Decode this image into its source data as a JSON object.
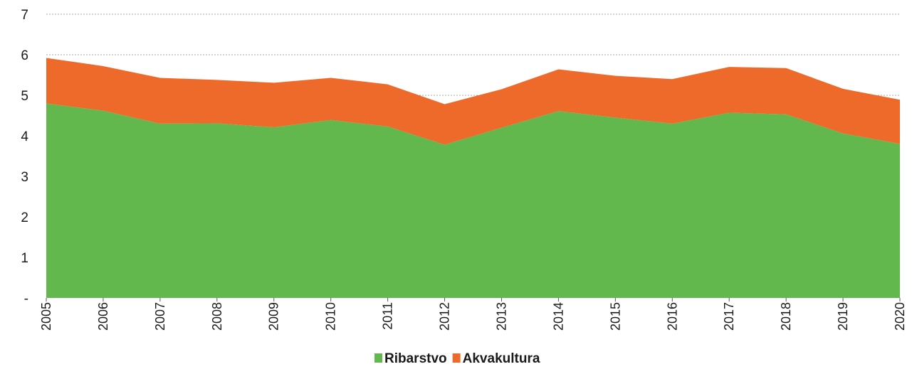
{
  "chart_data": {
    "type": "area",
    "stacked": true,
    "title": "",
    "xlabel": "",
    "ylabel": "",
    "x": [
      "2005",
      "2006",
      "2007",
      "2008",
      "2009",
      "2010",
      "2011",
      "2012",
      "2013",
      "2014",
      "2015",
      "2016",
      "2017",
      "2018",
      "2019",
      "2020"
    ],
    "series": [
      {
        "name": "Ribarstvo",
        "color": "#62b84c",
        "values": [
          4.8,
          4.62,
          4.3,
          4.31,
          4.21,
          4.39,
          4.23,
          3.78,
          4.2,
          4.61,
          4.45,
          4.3,
          4.57,
          4.53,
          4.06,
          3.8
        ]
      },
      {
        "name": "Akvakultura",
        "color": "#ee6a2a",
        "values": [
          1.12,
          1.1,
          1.13,
          1.07,
          1.1,
          1.04,
          1.04,
          1.0,
          0.95,
          1.03,
          1.03,
          1.1,
          1.13,
          1.14,
          1.1,
          1.09
        ]
      }
    ],
    "ylim": [
      0,
      7
    ],
    "y_ticks": [
      "-",
      "1",
      "2",
      "3",
      "4",
      "5",
      "6",
      "7"
    ],
    "grid": "horizontal dotted",
    "legend_position": "bottom-center"
  }
}
